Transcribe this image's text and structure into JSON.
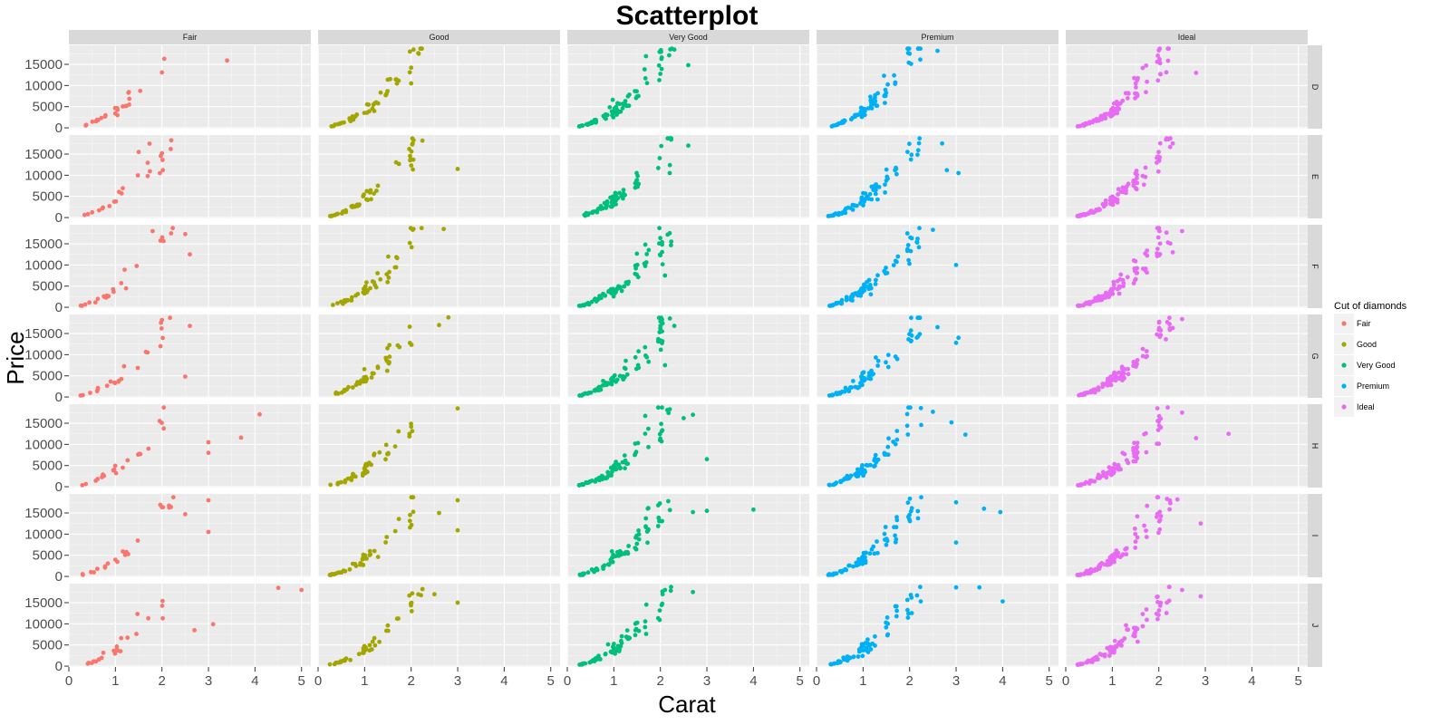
{
  "chart_data": {
    "type": "scatter",
    "title": "Scatterplot",
    "xlabel": "Carat",
    "ylabel": "Price",
    "xlim": [
      0,
      5.2
    ],
    "ylim": [
      -200,
      19500
    ],
    "x_ticks": [
      0,
      1,
      2,
      3,
      4,
      5
    ],
    "y_ticks": [
      0,
      5000,
      10000,
      15000
    ],
    "y_tick_labels": [
      "0",
      "5000",
      "10000",
      "15000"
    ],
    "grid": true,
    "legend_position": "right",
    "legend_title": "Cut of diamonds",
    "column_facets": [
      "Fair",
      "Good",
      "Very Good",
      "Premium",
      "Ideal"
    ],
    "row_facets": [
      "D",
      "E",
      "F",
      "G",
      "H",
      "I",
      "J"
    ],
    "series": [
      {
        "name": "Fair",
        "color": "#F8766D",
        "extremes": {
          "D": [
            [
              3.4,
              15900
            ],
            [
              2.05,
              16300
            ],
            [
              2.0,
              13100
            ]
          ],
          "E": [
            [
              1.5,
              15500
            ],
            [
              2.0,
              15200
            ],
            [
              2.02,
              11200
            ]
          ],
          "F": [
            [
              1.8,
              18000
            ],
            [
              2.5,
              17300
            ],
            [
              2.6,
              12500
            ]
          ],
          "G": [
            [
              2.0,
              18200
            ],
            [
              2.6,
              16800
            ],
            [
              2.5,
              4800
            ]
          ],
          "H": [
            [
              4.1,
              17100
            ],
            [
              3.7,
              11600
            ],
            [
              3.0,
              10500
            ],
            [
              3.0,
              8000
            ]
          ],
          "I": [
            [
              3.0,
              18000
            ],
            [
              2.5,
              14700
            ],
            [
              3.0,
              10500
            ]
          ],
          "J": [
            [
              4.5,
              18500
            ],
            [
              5.0,
              18000
            ],
            [
              3.1,
              9900
            ],
            [
              2.7,
              8500
            ]
          ]
        }
      },
      {
        "name": "Good",
        "color": "#A3A500",
        "extremes": {
          "D": [
            [
              2.05,
              18500
            ],
            [
              2.0,
              10500
            ]
          ],
          "E": [
            [
              2.05,
              18300
            ],
            [
              3.0,
              11500
            ]
          ],
          "F": [
            [
              2.05,
              18500
            ],
            [
              2.7,
              18500
            ]
          ],
          "G": [
            [
              2.8,
              18800
            ],
            [
              2.6,
              17000
            ]
          ],
          "H": [
            [
              3.0,
              18500
            ],
            [
              2.0,
              14200
            ]
          ],
          "I": [
            [
              3.0,
              18000
            ],
            [
              3.0,
              10900
            ],
            [
              2.6,
              15000
            ]
          ],
          "J": [
            [
              2.5,
              17000
            ],
            [
              3.0,
              15000
            ]
          ]
        }
      },
      {
        "name": "Very Good",
        "color": "#00BF7D",
        "extremes": {
          "D": [
            [
              2.6,
              14800
            ],
            [
              2.3,
              18500
            ]
          ],
          "E": [
            [
              2.6,
              17000
            ],
            [
              2.2,
              10500
            ]
          ],
          "F": [
            [
              2.2,
              17500
            ],
            [
              2.1,
              7500
            ]
          ],
          "G": [
            [
              2.3,
              16800
            ],
            [
              2.1,
              7500
            ]
          ],
          "H": [
            [
              2.7,
              17000
            ],
            [
              3.0,
              6500
            ],
            [
              2.5,
              16200
            ]
          ],
          "I": [
            [
              4.0,
              15800
            ],
            [
              3.0,
              15500
            ],
            [
              2.7,
              15200
            ]
          ],
          "J": [
            [
              2.7,
              17500
            ],
            [
              2.1,
              18000
            ]
          ]
        }
      },
      {
        "name": "Premium",
        "color": "#00B0F6",
        "extremes": {
          "D": [
            [
              2.6,
              18200
            ],
            [
              2.0,
              17500
            ]
          ],
          "E": [
            [
              3.05,
              10500
            ],
            [
              2.8,
              11200
            ],
            [
              2.7,
              17500
            ]
          ],
          "F": [
            [
              3.0,
              10000
            ],
            [
              2.5,
              18300
            ],
            [
              2.2,
              14200
            ]
          ],
          "G": [
            [
              3.05,
              14000
            ],
            [
              3.0,
              12800
            ],
            [
              2.6,
              16500
            ]
          ],
          "H": [
            [
              3.2,
              12300
            ],
            [
              2.5,
              17700
            ],
            [
              2.9,
              15200
            ]
          ],
          "I": [
            [
              3.0,
              17500
            ],
            [
              3.0,
              8000
            ],
            [
              3.6,
              16000
            ],
            [
              3.95,
              15200
            ]
          ],
          "J": [
            [
              3.0,
              18600
            ],
            [
              3.5,
              18600
            ],
            [
              4.0,
              15300
            ]
          ]
        }
      },
      {
        "name": "Ideal",
        "color": "#E76BF3",
        "extremes": {
          "D": [
            [
              2.8,
              13000
            ],
            [
              2.0,
              18300
            ]
          ],
          "E": [
            [
              2.2,
              18500
            ],
            [
              2.3,
              17500
            ]
          ],
          "F": [
            [
              2.5,
              18000
            ],
            [
              2.3,
              13000
            ]
          ],
          "G": [
            [
              2.5,
              18400
            ],
            [
              2.3,
              16300
            ]
          ],
          "H": [
            [
              3.5,
              12500
            ],
            [
              2.8,
              11500
            ],
            [
              2.5,
              17500
            ]
          ],
          "I": [
            [
              2.9,
              12500
            ],
            [
              2.4,
              18200
            ]
          ],
          "J": [
            [
              2.9,
              16500
            ],
            [
              2.5,
              18000
            ]
          ]
        }
      }
    ]
  }
}
